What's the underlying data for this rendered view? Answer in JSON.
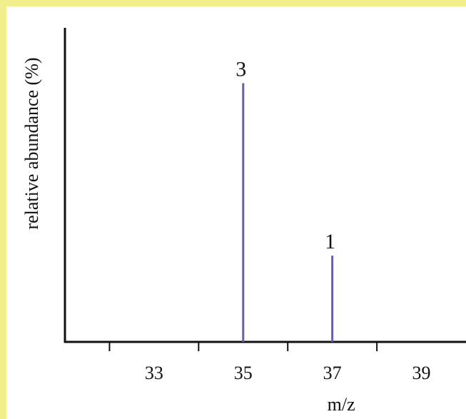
{
  "colors": {
    "border": "#f1ee8e",
    "background": "#ffffff",
    "axis": "#111111",
    "bar": "#6a5fa8"
  },
  "chart_data": {
    "type": "bar",
    "title": "",
    "xlabel": "m/z",
    "ylabel": "relative abundance (%)",
    "x": [
      35,
      37
    ],
    "values": [
      3,
      1
    ],
    "data_labels": [
      "3",
      "1"
    ],
    "xticks": [
      33,
      35,
      37,
      39
    ],
    "minor_xticks": [
      32,
      34,
      36,
      38
    ],
    "xlim": [
      31,
      40
    ],
    "ylim": [
      0,
      3.6
    ],
    "grid": false,
    "legend": "none"
  }
}
